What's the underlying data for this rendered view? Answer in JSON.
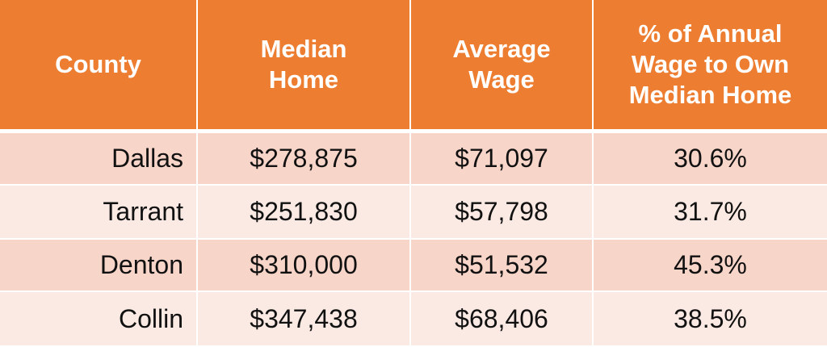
{
  "table": {
    "header": [
      [
        "County"
      ],
      [
        "Median",
        "Home"
      ],
      [
        "Average",
        "Wage"
      ],
      [
        "% of Annual",
        "Wage to Own",
        "Median Home"
      ]
    ],
    "rows": [
      [
        "Dallas",
        "$278,875",
        "$71,097",
        "30.6%"
      ],
      [
        "Tarrant",
        "$251,830",
        "$57,798",
        "31.7%"
      ],
      [
        "Denton",
        "$310,000",
        "$51,532",
        "45.3%"
      ],
      [
        "Collin",
        "$347,438",
        "$68,406",
        "38.5%"
      ]
    ]
  }
}
